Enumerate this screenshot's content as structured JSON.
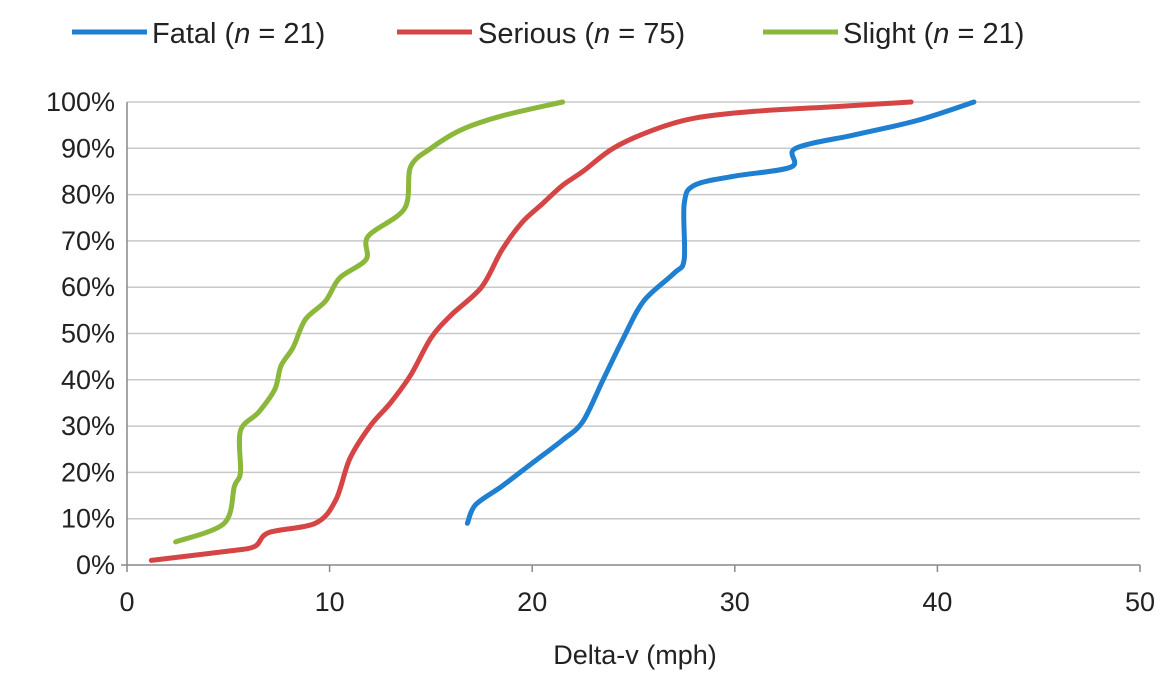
{
  "chart_data": {
    "type": "line",
    "title": "",
    "xlabel": "Delta-v (mph)",
    "ylabel": "",
    "xlim": [
      0,
      50
    ],
    "ylim": [
      0,
      100
    ],
    "x_ticks": [
      "0",
      "10",
      "20",
      "30",
      "40",
      "50"
    ],
    "y_ticks": [
      "0%",
      "10%",
      "20%",
      "30%",
      "40%",
      "50%",
      "60%",
      "70%",
      "80%",
      "90%",
      "100%"
    ],
    "grid": true,
    "legend_position": "top",
    "series": [
      {
        "name": "Fatal",
        "n_label": "21",
        "color": "#1f7fd0",
        "points": [
          [
            16.8,
            9
          ],
          [
            17.2,
            13
          ],
          [
            18.5,
            17
          ],
          [
            20,
            22
          ],
          [
            21.5,
            27
          ],
          [
            22.5,
            31
          ],
          [
            23.5,
            40
          ],
          [
            24.5,
            49
          ],
          [
            25.5,
            57
          ],
          [
            27,
            63
          ],
          [
            27.5,
            66
          ],
          [
            27.5,
            78
          ],
          [
            28,
            82
          ],
          [
            30,
            84
          ],
          [
            32.8,
            86
          ],
          [
            33,
            90
          ],
          [
            36,
            93
          ],
          [
            39,
            96
          ],
          [
            41.8,
            100
          ]
        ]
      },
      {
        "name": "Serious",
        "n_label": "75",
        "color": "#d64545",
        "points": [
          [
            1.2,
            1
          ],
          [
            5,
            3
          ],
          [
            6.3,
            4
          ],
          [
            7,
            7
          ],
          [
            9.3,
            9
          ],
          [
            10.3,
            14
          ],
          [
            11,
            23
          ],
          [
            12,
            30
          ],
          [
            13,
            35
          ],
          [
            14,
            41
          ],
          [
            15,
            49
          ],
          [
            16,
            54
          ],
          [
            17.5,
            60
          ],
          [
            18.5,
            68
          ],
          [
            19.5,
            74
          ],
          [
            20.5,
            78
          ],
          [
            21.5,
            82
          ],
          [
            22.5,
            85
          ],
          [
            24,
            90
          ],
          [
            26,
            94
          ],
          [
            28,
            96.5
          ],
          [
            31,
            98
          ],
          [
            35,
            99
          ],
          [
            38.7,
            100
          ]
        ]
      },
      {
        "name": "Slight",
        "n_label": "21",
        "color": "#8bb73b",
        "points": [
          [
            2.4,
            5
          ],
          [
            4.8,
            9
          ],
          [
            5.3,
            17
          ],
          [
            5.6,
            20
          ],
          [
            5.6,
            29
          ],
          [
            6.5,
            33
          ],
          [
            7.3,
            38
          ],
          [
            7.6,
            43
          ],
          [
            8.2,
            47
          ],
          [
            8.8,
            53
          ],
          [
            9.8,
            57
          ],
          [
            10.5,
            62
          ],
          [
            11.8,
            66
          ],
          [
            11.9,
            71
          ],
          [
            13.7,
            77
          ],
          [
            14,
            86
          ],
          [
            15,
            90
          ],
          [
            16.5,
            94
          ],
          [
            18.5,
            97
          ],
          [
            21.5,
            100
          ]
        ]
      }
    ]
  }
}
